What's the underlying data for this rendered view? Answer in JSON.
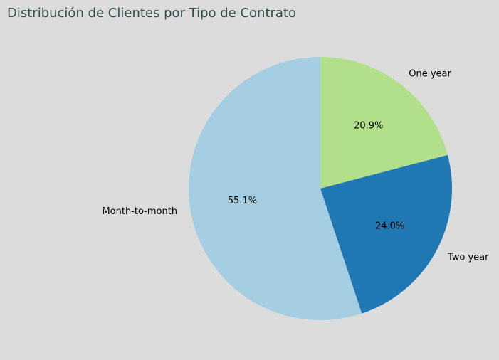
{
  "chart_data": {
    "type": "pie",
    "title": "Distribución de Clientes por Tipo de Contrato",
    "slices": [
      {
        "label": "One year",
        "value": 20.9,
        "pct_label": "20.9%",
        "color": "#b2df8a"
      },
      {
        "label": "Two year",
        "value": 24.0,
        "pct_label": "24.0%",
        "color": "#1f78b4"
      },
      {
        "label": "Month-to-month",
        "value": 55.1,
        "pct_label": "55.1%",
        "color": "#a6cee3"
      }
    ],
    "start_angle_deg": 90,
    "direction": "clockwise"
  },
  "colors": {
    "background": "#dcdcdc",
    "title": "#2f4f4f"
  }
}
